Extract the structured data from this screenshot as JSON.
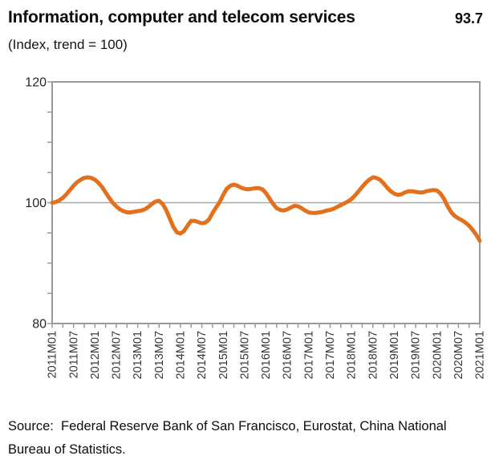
{
  "header": {
    "title": "Information, computer and telecom services",
    "latest_value": "93.7",
    "subtitle": "(Index, trend = 100)"
  },
  "source": {
    "lines": [
      "Source:  Federal Reserve Bank of San Francisco, Eurostat, China National",
      "Bureau of Statistics."
    ]
  },
  "chart_data": {
    "type": "line",
    "title": "Information, computer and telecom services",
    "subtitle": "(Index, trend = 100)",
    "series_name": "Index, trend = 100",
    "x_frequency": "monthly",
    "x_start": "2011M01",
    "x_end": "2021M01",
    "x_labels": [
      "2011M01",
      "2011M07",
      "2012M01",
      "2012M07",
      "2013M01",
      "2013M07",
      "2014M01",
      "2014M07",
      "2015M01",
      "2015M07",
      "2016M01",
      "2016M07",
      "2017M01",
      "2017M07",
      "2018M01",
      "2018M07",
      "2019M01",
      "2019M07",
      "2020M01",
      "2020M07",
      "2021M01"
    ],
    "x_label_step_months": 6,
    "x_minor_tick_step_months": 3,
    "values": [
      100.0,
      100.1,
      100.4,
      100.8,
      101.4,
      102.1,
      102.8,
      103.4,
      103.8,
      104.1,
      104.2,
      104.1,
      103.8,
      103.3,
      102.6,
      101.7,
      100.8,
      100.0,
      99.4,
      98.9,
      98.6,
      98.4,
      98.4,
      98.5,
      98.6,
      98.7,
      98.9,
      99.3,
      99.8,
      100.2,
      100.3,
      99.8,
      98.8,
      97.4,
      96.0,
      95.1,
      94.9,
      95.3,
      96.2,
      97.0,
      97.0,
      96.8,
      96.6,
      96.7,
      97.2,
      98.3,
      99.2,
      100.1,
      101.3,
      102.3,
      102.8,
      103.0,
      102.8,
      102.5,
      102.3,
      102.2,
      102.3,
      102.4,
      102.4,
      102.2,
      101.6,
      100.7,
      99.8,
      99.1,
      98.8,
      98.7,
      98.9,
      99.2,
      99.5,
      99.4,
      99.1,
      98.7,
      98.4,
      98.3,
      98.3,
      98.4,
      98.5,
      98.7,
      98.8,
      99.0,
      99.3,
      99.6,
      99.9,
      100.2,
      100.6,
      101.2,
      101.9,
      102.6,
      103.3,
      103.8,
      104.2,
      104.1,
      103.8,
      103.2,
      102.5,
      101.9,
      101.5,
      101.3,
      101.4,
      101.7,
      101.9,
      101.9,
      101.8,
      101.7,
      101.7,
      101.9,
      102.0,
      102.1,
      102.0,
      101.5,
      100.6,
      99.4,
      98.4,
      97.8,
      97.4,
      97.1,
      96.7,
      96.2,
      95.5,
      94.7,
      93.7
    ],
    "latest_value": 93.7,
    "ylim": [
      80,
      120
    ],
    "y_ticks_labeled": [
      80,
      100,
      120
    ],
    "y_minor_tick_step": 5,
    "gridline_at": 100,
    "grid": "single horizontal line at 100 only",
    "legend": "none",
    "xlabel": "",
    "ylabel": "",
    "colors": {
      "line": "#E2711D",
      "axis": "#9A9A9A",
      "gridline": "#A8A8A8",
      "axis_label_text": "#383838",
      "title_text": "#0d0d0d"
    }
  }
}
